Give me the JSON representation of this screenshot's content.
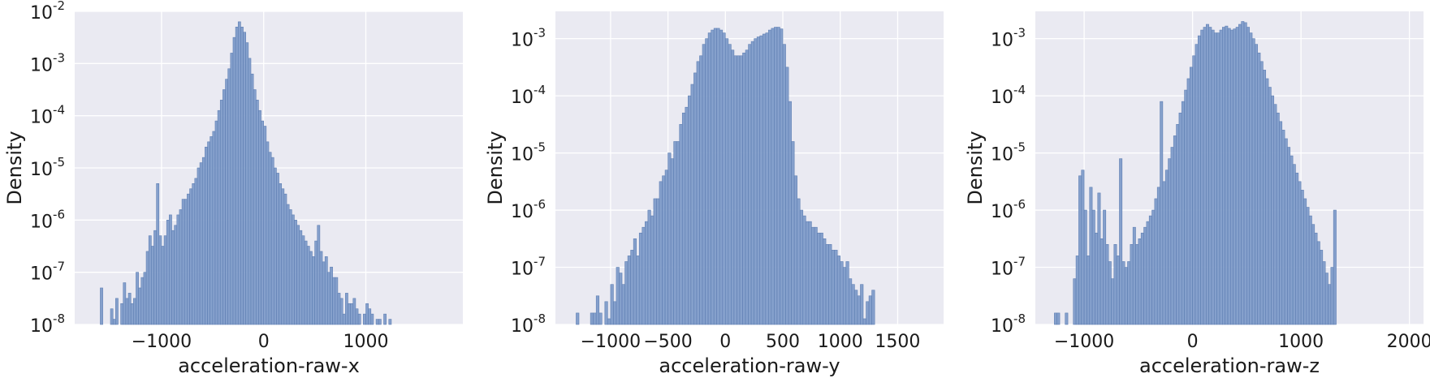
{
  "chart_data": [
    {
      "type": "bar",
      "xlabel": "acceleration-raw-x",
      "ylabel": "Density",
      "yscale": "log",
      "xlim": [
        -1850,
        1950
      ],
      "ylim": [
        1e-08,
        0.01
      ],
      "xticks": [
        {
          "value": -1000,
          "label": "−1000"
        },
        {
          "value": 0,
          "label": "0"
        },
        {
          "value": 1000,
          "label": "1000"
        }
      ],
      "yticks": [
        {
          "value": 1e-08,
          "base": "10",
          "exp": "-8"
        },
        {
          "value": 1e-07,
          "base": "10",
          "exp": "-7"
        },
        {
          "value": 1e-06,
          "base": "10",
          "exp": "-6"
        },
        {
          "value": 1e-05,
          "base": "10",
          "exp": "-5"
        },
        {
          "value": 0.0001,
          "base": "10",
          "exp": "-4"
        },
        {
          "value": 0.001,
          "base": "10",
          "exp": "-3"
        },
        {
          "value": 0.01,
          "base": "10",
          "exp": "-2"
        }
      ],
      "grid": true,
      "bar_color": "#7f9cc9",
      "bin_start": -1600,
      "bin_width": 25,
      "log10_density": [
        -7.3,
        -99,
        -99,
        -99,
        -7.7,
        -7.9,
        -7.5,
        -8.0,
        -7.6,
        -7.2,
        -7.5,
        -7.4,
        -7.6,
        -7.5,
        -7.0,
        -7.3,
        -7.1,
        -7.0,
        -6.6,
        -6.3,
        -6.5,
        -6.2,
        -5.3,
        -6.3,
        -6.5,
        -6.3,
        -6.0,
        -5.9,
        -6.2,
        -6.1,
        -5.9,
        -5.8,
        -5.6,
        -5.6,
        -5.5,
        -5.4,
        -5.3,
        -5.2,
        -5.0,
        -4.9,
        -4.8,
        -4.6,
        -4.5,
        -4.4,
        -4.3,
        -4.1,
        -3.9,
        -3.7,
        -3.5,
        -3.3,
        -3.1,
        -2.8,
        -2.5,
        -2.3,
        -2.2,
        -2.3,
        -2.4,
        -2.6,
        -2.9,
        -3.2,
        -3.5,
        -3.7,
        -3.9,
        -4.1,
        -4.2,
        -4.5,
        -4.7,
        -4.8,
        -5.0,
        -5.1,
        -5.3,
        -5.4,
        -5.5,
        -5.7,
        -5.8,
        -5.9,
        -6.0,
        -6.1,
        -6.2,
        -6.3,
        -6.4,
        -6.5,
        -6.6,
        -6.7,
        -6.4,
        -6.1,
        -6.6,
        -6.8,
        -6.7,
        -7.0,
        -6.9,
        -7.1,
        -7.1,
        -7.4,
        -7.5,
        -7.8,
        -7.4,
        -7.6,
        -7.6,
        -7.5,
        -7.7,
        -7.8,
        -8.0,
        -7.8,
        -7.6,
        -7.7,
        -7.8,
        -8.0,
        -7.9,
        -7.9,
        -99,
        -7.8,
        -99,
        -7.9
      ]
    },
    {
      "type": "bar",
      "xlabel": "acceleration-raw-y",
      "ylabel": "Density",
      "yscale": "log",
      "xlim": [
        -1480,
        1900
      ],
      "ylim": [
        1e-08,
        0.003
      ],
      "xticks": [
        {
          "value": -1000,
          "label": "−1000"
        },
        {
          "value": -500,
          "label": "−500"
        },
        {
          "value": 0,
          "label": "0"
        },
        {
          "value": 500,
          "label": "500"
        },
        {
          "value": 1000,
          "label": "1000"
        },
        {
          "value": 1500,
          "label": "1500"
        }
      ],
      "yticks": [
        {
          "value": 1e-08,
          "base": "10",
          "exp": "-8"
        },
        {
          "value": 1e-07,
          "base": "10",
          "exp": "-7"
        },
        {
          "value": 1e-06,
          "base": "10",
          "exp": "-6"
        },
        {
          "value": 1e-05,
          "base": "10",
          "exp": "-5"
        },
        {
          "value": 0.0001,
          "base": "10",
          "exp": "-4"
        },
        {
          "value": 0.001,
          "base": "10",
          "exp": "-3"
        }
      ],
      "grid": true,
      "bar_color": "#7f9cc9",
      "bin_start": -1300,
      "bin_width": 25,
      "log10_density": [
        -7.8,
        -99,
        -99,
        -99,
        -99,
        -7.8,
        -7.8,
        -7.5,
        -7.8,
        -99,
        -7.6,
        -7.9,
        -7.3,
        -7.6,
        -7.0,
        -7.1,
        -7.3,
        -6.9,
        -6.8,
        -6.7,
        -6.5,
        -6.8,
        -6.4,
        -6.3,
        -6.2,
        -6.0,
        -6.1,
        -5.8,
        -5.8,
        -5.5,
        -5.4,
        -5.3,
        -5.0,
        -5.1,
        -4.8,
        -4.8,
        -4.5,
        -4.3,
        -4.2,
        -4.0,
        -3.8,
        -3.6,
        -3.4,
        -3.3,
        -3.1,
        -3.0,
        -2.9,
        -2.85,
        -2.82,
        -2.82,
        -2.85,
        -2.9,
        -3.0,
        -3.1,
        -3.2,
        -3.3,
        -3.3,
        -3.3,
        -3.25,
        -3.2,
        -3.1,
        -3.05,
        -3.0,
        -2.97,
        -2.95,
        -2.92,
        -2.9,
        -2.85,
        -2.82,
        -2.8,
        -2.8,
        -2.83,
        -3.1,
        -3.5,
        -4.1,
        -4.8,
        -5.4,
        -5.8,
        -6.0,
        -6.1,
        -6.2,
        -6.2,
        -6.3,
        -6.3,
        -6.4,
        -6.4,
        -6.5,
        -6.6,
        -6.6,
        -6.7,
        -6.7,
        -6.8,
        -6.9,
        -7.0,
        -6.9,
        -7.2,
        -7.3,
        -7.4,
        -7.5,
        -7.3,
        -7.9,
        -7.6,
        -7.5,
        -7.4
      ]
    },
    {
      "type": "bar",
      "xlabel": "acceleration-raw-z",
      "ylabel": "Density",
      "yscale": "log",
      "xlim": [
        -1450,
        2130
      ],
      "ylim": [
        1e-08,
        0.003
      ],
      "xticks": [
        {
          "value": -1000,
          "label": "−1000"
        },
        {
          "value": 0,
          "label": "0"
        },
        {
          "value": 1000,
          "label": "1000"
        },
        {
          "value": 2000,
          "label": "2000"
        }
      ],
      "yticks": [
        {
          "value": 1e-08,
          "base": "10",
          "exp": "-8"
        },
        {
          "value": 1e-07,
          "base": "10",
          "exp": "-7"
        },
        {
          "value": 1e-06,
          "base": "10",
          "exp": "-6"
        },
        {
          "value": 1e-05,
          "base": "10",
          "exp": "-5"
        },
        {
          "value": 0.0001,
          "base": "10",
          "exp": "-4"
        },
        {
          "value": 0.001,
          "base": "10",
          "exp": "-3"
        }
      ],
      "grid": true,
      "bar_color": "#7f9cc9",
      "bin_start": -1275,
      "bin_width": 25,
      "log10_density": [
        -7.8,
        -7.8,
        -99,
        -99,
        -7.8,
        -99,
        -99,
        -7.2,
        -6.8,
        -5.4,
        -5.3,
        -6.0,
        -6.8,
        -5.6,
        -6.0,
        -6.4,
        -5.7,
        -6.5,
        -6.0,
        -6.6,
        -6.9,
        -7.2,
        -6.6,
        -6.8,
        -5.1,
        -6.9,
        -7.0,
        -6.9,
        -6.6,
        -6.3,
        -6.6,
        -6.5,
        -6.4,
        -6.3,
        -6.2,
        -6.1,
        -6.0,
        -5.8,
        -5.6,
        -4.1,
        -5.5,
        -5.3,
        -5.1,
        -4.9,
        -4.7,
        -4.5,
        -4.3,
        -4.1,
        -3.9,
        -3.7,
        -3.5,
        -3.3,
        -3.1,
        -2.95,
        -2.85,
        -2.8,
        -2.75,
        -2.8,
        -2.85,
        -2.9,
        -2.9,
        -2.85,
        -2.8,
        -2.78,
        -2.82,
        -2.85,
        -2.83,
        -2.8,
        -2.75,
        -2.7,
        -2.72,
        -2.8,
        -2.9,
        -3.0,
        -3.1,
        -3.25,
        -3.4,
        -3.55,
        -3.7,
        -3.85,
        -4.0,
        -4.15,
        -4.3,
        -4.45,
        -4.6,
        -4.75,
        -4.9,
        -5.05,
        -5.2,
        -5.35,
        -5.5,
        -5.65,
        -5.8,
        -5.95,
        -6.1,
        -6.25,
        -6.4,
        -6.55,
        -6.7,
        -6.9,
        -7.1,
        -7.3,
        -7.0,
        -6.0
      ]
    }
  ]
}
